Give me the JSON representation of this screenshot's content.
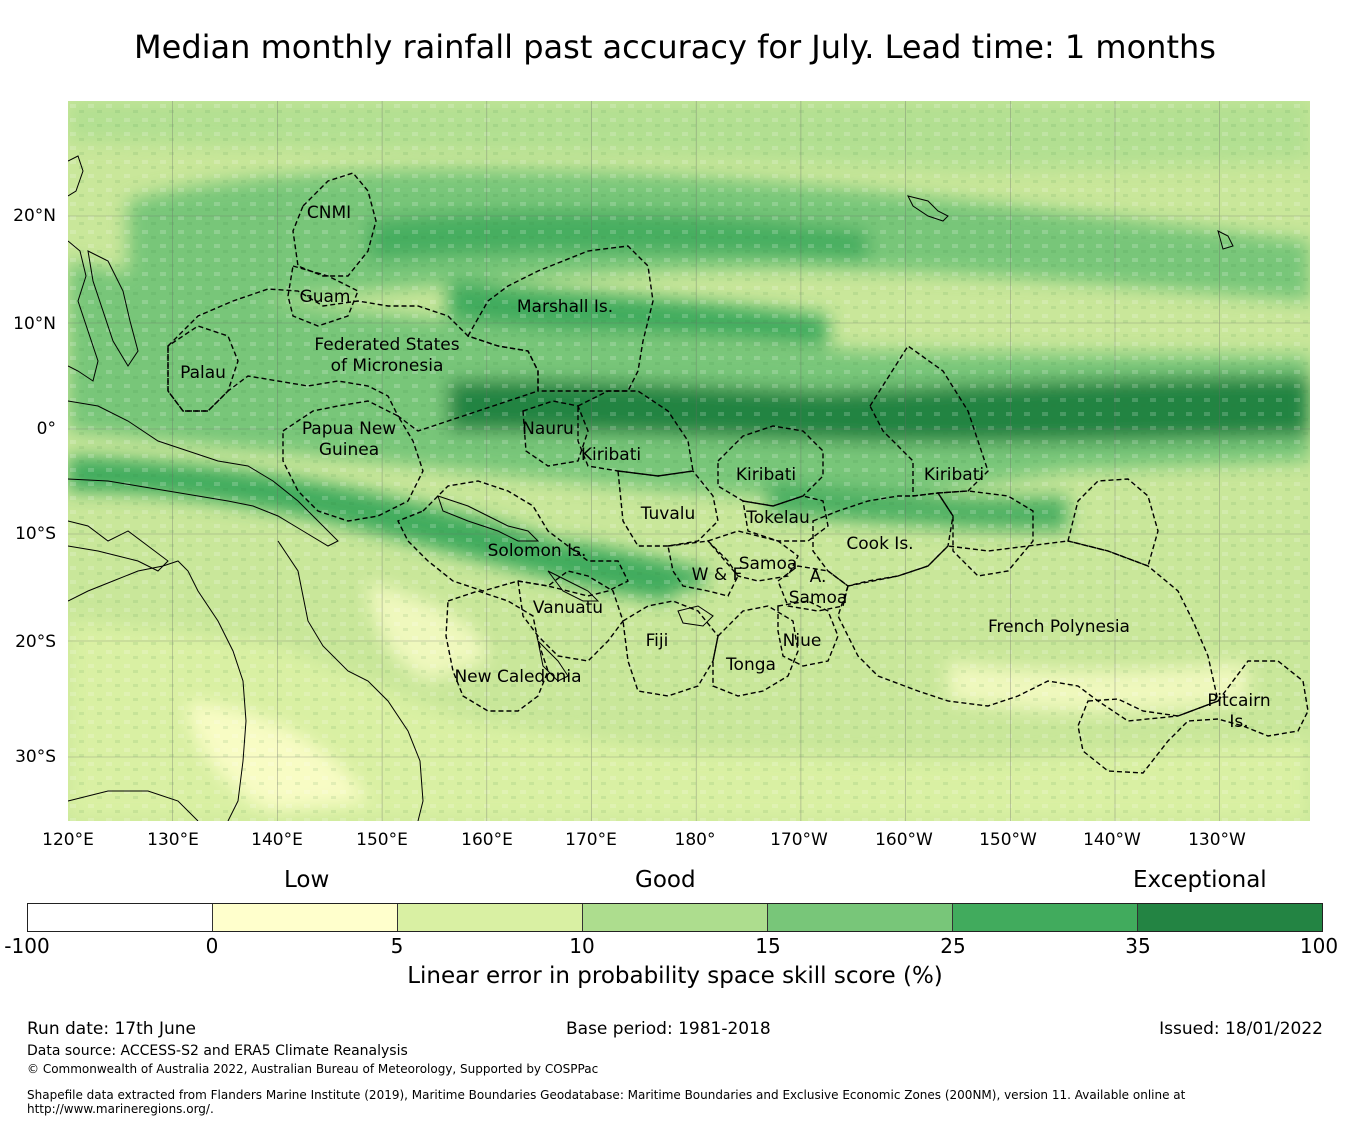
{
  "title": "Median monthly rainfall past accuracy for July. Lead time: 1 months",
  "map": {
    "lat_labels": [
      "20°N",
      "10°N",
      "0°",
      "10°S",
      "20°S",
      "30°S"
    ],
    "lon_labels": [
      "120°E",
      "130°E",
      "140°E",
      "150°E",
      "160°E",
      "170°E",
      "180°",
      "170°W",
      "160°W",
      "150°W",
      "140°W",
      "130°W"
    ],
    "regions": [
      {
        "name": "CNMI",
        "lines": [
          "CNMI"
        ]
      },
      {
        "name": "Guam",
        "lines": [
          "Guam"
        ]
      },
      {
        "name": "Marshall Is.",
        "lines": [
          "Marshall Is."
        ]
      },
      {
        "name": "Federated States of Micronesia",
        "lines": [
          "Federated States",
          "of Micronesia"
        ]
      },
      {
        "name": "Palau",
        "lines": [
          "Palau"
        ]
      },
      {
        "name": "Papua New Guinea",
        "lines": [
          "Papua New",
          "Guinea"
        ]
      },
      {
        "name": "Nauru",
        "lines": [
          "Nauru"
        ]
      },
      {
        "name": "Kiribati (Gilbert)",
        "lines": [
          "Kiribati"
        ]
      },
      {
        "name": "Kiribati (Phoenix)",
        "lines": [
          "Kiribati"
        ]
      },
      {
        "name": "Kiribati (Line)",
        "lines": [
          "Kiribati"
        ]
      },
      {
        "name": "Tuvalu",
        "lines": [
          "Tuvalu"
        ]
      },
      {
        "name": "Tokelau",
        "lines": [
          "Tokelau"
        ]
      },
      {
        "name": "Solomon Is.",
        "lines": [
          "Solomon Is."
        ]
      },
      {
        "name": "Samoa",
        "lines": [
          "Samoa"
        ]
      },
      {
        "name": "W & F",
        "lines": [
          "W & F"
        ]
      },
      {
        "name": "A. Samoa",
        "lines": [
          "A.",
          "Samoa"
        ]
      },
      {
        "name": "Cook Is.",
        "lines": [
          "Cook Is."
        ]
      },
      {
        "name": "Vanuatu",
        "lines": [
          "Vanuatu"
        ]
      },
      {
        "name": "Fiji",
        "lines": [
          "Fiji"
        ]
      },
      {
        "name": "Niue",
        "lines": [
          "Niue"
        ]
      },
      {
        "name": "Tonga",
        "lines": [
          "Tonga"
        ]
      },
      {
        "name": "French Polynesia",
        "lines": [
          "French Polynesia"
        ]
      },
      {
        "name": "New Caledonia",
        "lines": [
          "New Caledonia"
        ]
      },
      {
        "name": "Pitcairn Is.",
        "lines": [
          "Pitcairn",
          "Is."
        ]
      }
    ]
  },
  "legend": {
    "categories": [
      "Low",
      "Good",
      "Exceptional"
    ],
    "ticks": [
      "-100",
      "0",
      "5",
      "10",
      "15",
      "25",
      "35",
      "100"
    ],
    "colors": [
      "#ffffff",
      "#ffffcc",
      "#d9f0a3",
      "#addd8e",
      "#78c679",
      "#41ab5d",
      "#238443"
    ],
    "label": "Linear error in probability space skill score (%)"
  },
  "footer": {
    "run_date": "Run date: 17th June",
    "base_period": "Base period: 1981-2018",
    "issued": "Issued: 18/01/2022",
    "data_source": "Data source: ACCESS-S2 and ERA5 Climate Reanalysis",
    "copyright": "© Commonwealth of Australia 2022, Australian Bureau of Meteorology, Supported by COSPPac",
    "shapefile_line1": "Shapefile data extracted from Flanders Marine Institute (2019), Maritime Boundaries Geodatabase: Maritime Boundaries and Exclusive Economic Zones (200NM), version 11. Available online at",
    "shapefile_line2": "http://www.marineregions.org/."
  }
}
